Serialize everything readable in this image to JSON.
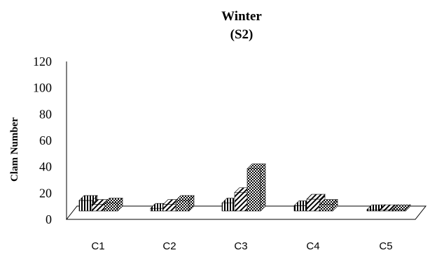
{
  "chart_data": {
    "type": "bar",
    "title": "Winter",
    "subtitle": "(S2)",
    "xlabel": "",
    "ylabel": "Clam Number",
    "ylim": [
      0,
      120
    ],
    "yticks": [
      "0",
      "20",
      "40",
      "60",
      "80",
      "100",
      "120"
    ],
    "categories": [
      "C1",
      "C2",
      "C3",
      "C4",
      "C5"
    ],
    "grid": false,
    "legend": "none",
    "series": [
      {
        "values": [
          8,
          2,
          6,
          4,
          1
        ],
        "color": "#000000",
        "pattern": "vertical-stripes"
      },
      {
        "values": [
          5,
          5,
          14,
          9,
          1
        ],
        "color": "#000000",
        "pattern": "diagonal-stripes"
      },
      {
        "values": [
          6,
          8,
          32,
          5,
          1
        ],
        "color": "#000000",
        "pattern": "checker"
      }
    ]
  }
}
